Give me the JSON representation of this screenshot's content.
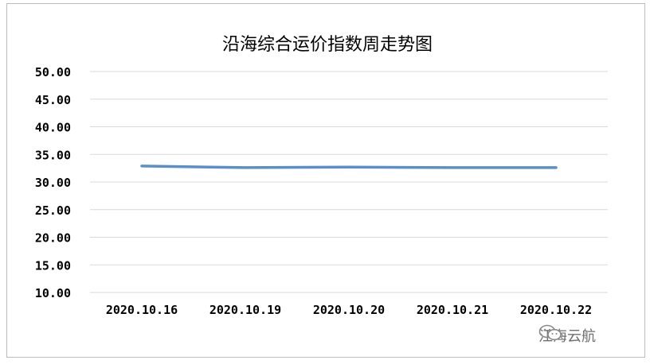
{
  "chart_data": {
    "type": "line",
    "title": "沿海综合运价指数周走势图",
    "categories": [
      "2020.10.16",
      "2020.10.19",
      "2020.10.20",
      "2020.10.21",
      "2020.10.22"
    ],
    "series": [
      {
        "values": [
          32.9,
          32.6,
          32.7,
          32.6,
          32.6
        ],
        "color": "#5b8fc9"
      }
    ],
    "ylim": [
      10,
      50
    ],
    "yticks": [
      "10.00",
      "15.00",
      "20.00",
      "25.00",
      "30.00",
      "35.00",
      "40.00",
      "45.00",
      "50.00"
    ],
    "grid": true,
    "legend": "none"
  },
  "watermark": {
    "text": "江海云航",
    "icon": "wechat-icon"
  },
  "colors": {
    "grid": "#d9d9d9",
    "axis_text": "#000000",
    "line": "#5b8fc9"
  }
}
